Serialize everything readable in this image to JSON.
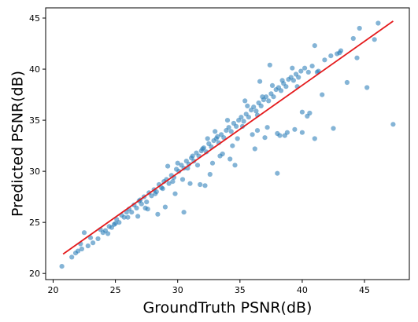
{
  "chart_data": {
    "type": "scatter",
    "title": "",
    "xlabel": "GroundTruth PSNR(dB)",
    "ylabel": "Predicted PSNR(dB)",
    "xlim": [
      19.4,
      48.6
    ],
    "ylim": [
      19.4,
      46.0
    ],
    "xticks": [
      20,
      25,
      30,
      35,
      40,
      45
    ],
    "yticks": [
      20,
      25,
      30,
      35,
      40,
      45
    ],
    "grid": false,
    "legend": "none",
    "colors": {
      "points": "#1f77b4",
      "fit_line": "#e41a1c",
      "axes": "#000000"
    },
    "fit_line": {
      "x": [
        20.8,
        47.3
      ],
      "y": [
        21.9,
        44.7
      ]
    },
    "series": [
      {
        "x": [
          20.7,
          21.5,
          21.8,
          22.0,
          22.3,
          22.5,
          22.8,
          23.0,
          23.2,
          23.6,
          23.8,
          24.0,
          24.2,
          24.5,
          24.7,
          24.9,
          25.1,
          25.3,
          25.5,
          25.7,
          25.9,
          26.1,
          26.3,
          26.5,
          26.7,
          26.9,
          27.1,
          27.3,
          27.5,
          27.7,
          27.9,
          28.1,
          28.3,
          28.5,
          28.7,
          28.9,
          29.1,
          29.3,
          29.5,
          29.7,
          29.9,
          30.1,
          30.3,
          30.5,
          30.7,
          30.9,
          31.1,
          31.3,
          31.5,
          31.7,
          31.9,
          32.1,
          32.3,
          32.5,
          32.7,
          32.9,
          33.1,
          33.3,
          33.5,
          33.7,
          33.9,
          34.1,
          34.3,
          34.5,
          34.7,
          34.9,
          35.1,
          35.3,
          35.5,
          35.7,
          35.9,
          36.1,
          36.3,
          36.5,
          36.7,
          36.9,
          37.1,
          37.3,
          37.5,
          37.7,
          37.9,
          38.1,
          38.3,
          38.5,
          38.7,
          38.9,
          39.1,
          39.3,
          39.5,
          39.7,
          39.9,
          40.2,
          40.5,
          40.8,
          41.0,
          41.3,
          41.8,
          42.3,
          42.8,
          43.1,
          44.1,
          44.6,
          45.2,
          46.1,
          47.3,
          22.2,
          24.4,
          25.0,
          26.0,
          27.0,
          27.6,
          28.2,
          28.8,
          29.2,
          29.6,
          30.0,
          30.4,
          30.8,
          31.2,
          31.6,
          32.0,
          32.4,
          32.8,
          33.2,
          33.6,
          34.0,
          34.4,
          34.8,
          35.2,
          35.6,
          36.0,
          36.4,
          36.8,
          37.2,
          37.6,
          38.0,
          38.4,
          38.8,
          39.2,
          39.6,
          40.0,
          40.4,
          41.2,
          41.6,
          42.5,
          43.0,
          43.6,
          44.4,
          45.8,
          30.5,
          31.8,
          33.4,
          34.6,
          36.2,
          37.0,
          38.0,
          38.6,
          39.4,
          40.6,
          41.0,
          28.4,
          29.0,
          32.2,
          33.0,
          35.4,
          36.6,
          37.4,
          26.8,
          27.4,
          29.8,
          31.0,
          32.6,
          34.2,
          36.4,
          38.2,
          40.0
        ],
        "y": [
          20.7,
          21.6,
          22.0,
          22.2,
          22.4,
          24.0,
          22.7,
          23.5,
          23.0,
          23.4,
          24.3,
          24.0,
          24.2,
          24.6,
          24.5,
          24.8,
          25.3,
          25.0,
          25.7,
          25.5,
          26.0,
          26.3,
          26.0,
          26.7,
          26.4,
          27.1,
          26.8,
          27.5,
          27.0,
          27.9,
          27.6,
          28.2,
          28.0,
          28.7,
          28.4,
          29.0,
          29.2,
          28.8,
          29.6,
          29.4,
          30.2,
          30.0,
          30.6,
          30.3,
          31.0,
          30.7,
          31.3,
          31.0,
          31.8,
          31.5,
          32.0,
          32.3,
          31.9,
          32.7,
          32.4,
          33.0,
          33.2,
          32.8,
          33.6,
          33.3,
          34.0,
          34.3,
          33.9,
          34.7,
          34.4,
          35.0,
          35.3,
          34.9,
          35.6,
          35.3,
          36.0,
          36.3,
          35.9,
          36.7,
          36.4,
          37.0,
          37.3,
          36.9,
          37.6,
          37.3,
          38.0,
          38.2,
          37.9,
          38.6,
          38.3,
          39.0,
          39.2,
          38.9,
          39.5,
          39.2,
          39.8,
          40.1,
          39.7,
          40.3,
          42.3,
          39.8,
          40.9,
          41.3,
          41.5,
          41.8,
          43.0,
          44.0,
          38.2,
          44.5,
          34.6,
          22.9,
          23.9,
          24.9,
          25.5,
          27.2,
          26.3,
          27.8,
          28.3,
          30.5,
          29.0,
          30.8,
          29.2,
          30.3,
          31.5,
          30.6,
          32.2,
          33.2,
          30.8,
          33.4,
          31.7,
          35.0,
          32.5,
          33.2,
          34.4,
          36.4,
          33.6,
          35.5,
          37.3,
          34.3,
          38.4,
          33.7,
          38.9,
          33.8,
          40.1,
          38.3,
          33.8,
          35.4,
          39.7,
          37.5,
          34.2,
          41.6,
          38.7,
          41.1,
          42.9,
          26.0,
          28.7,
          31.5,
          30.6,
          32.2,
          33.3,
          29.8,
          33.5,
          34.1,
          35.7,
          33.2,
          25.8,
          26.5,
          28.6,
          33.9,
          36.9,
          38.8,
          40.4,
          25.6,
          26.4,
          27.8,
          28.8,
          29.7,
          31.2,
          34.0,
          33.5,
          35.8
        ]
      }
    ]
  }
}
